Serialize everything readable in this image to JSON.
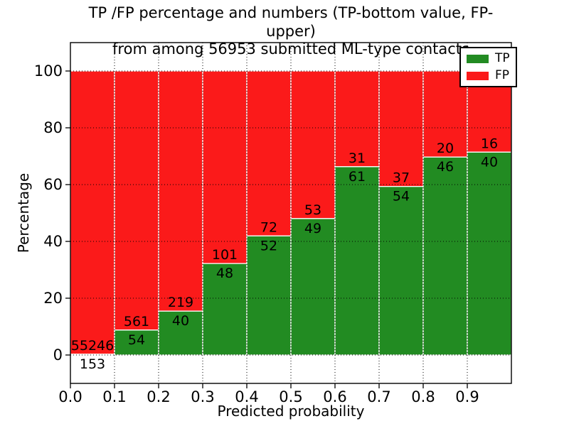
{
  "chart_data": {
    "type": "bar",
    "stacked": true,
    "title": "TP /FP percentage and numbers (TP-bottom value, FP-upper)\nfrom among 56953 submitted ML-type contacts",
    "xlabel": "Predicted probability",
    "ylabel": "Percentage",
    "total_contacts": 56953,
    "xlim": [
      0.0,
      1.0
    ],
    "ylim": [
      -10,
      110
    ],
    "bin_width": 0.1,
    "x_ticks": [
      "0.0",
      "0.1",
      "0.2",
      "0.3",
      "0.4",
      "0.5",
      "0.6",
      "0.7",
      "0.8",
      "0.9"
    ],
    "y_ticks": [
      0,
      20,
      40,
      60,
      80,
      100
    ],
    "series": [
      {
        "name": "TP",
        "color": "#228b22",
        "counts": [
          153,
          54,
          40,
          48,
          52,
          49,
          61,
          54,
          46,
          40
        ]
      },
      {
        "name": "FP",
        "color": "#fb1a1a",
        "counts": [
          55246,
          561,
          219,
          101,
          72,
          53,
          31,
          37,
          20,
          16
        ]
      }
    ],
    "tp_percent": [
      0.28,
      8.78,
      15.44,
      32.21,
      41.94,
      48.04,
      66.3,
      59.34,
      69.7,
      71.43
    ],
    "grid": "dotted",
    "legend_position": "upper right",
    "label_rule": "FP count printed just above the TP/FP boundary, TP count just below it"
  },
  "colors": {
    "background": "#ffffff",
    "grid": "#000000",
    "bar_edge": "#ffffff",
    "text": "#000000"
  }
}
